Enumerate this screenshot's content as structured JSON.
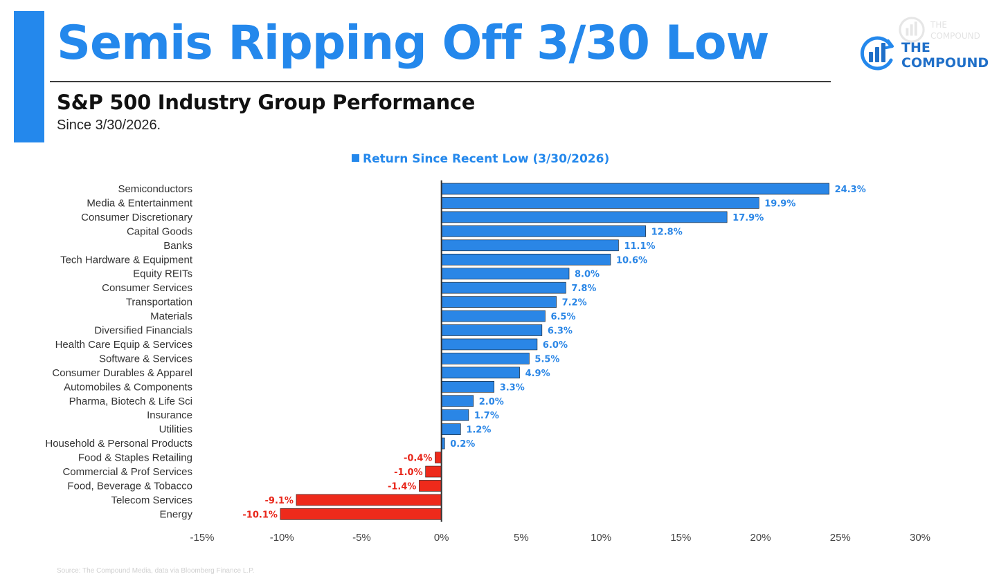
{
  "header": {
    "title": "Semis Ripping Off 3/30 Low",
    "subtitle": "S&P 500 Industry Group Performance",
    "subtitle_2": "Since 3/30/2026.",
    "logo_line_1": "THE",
    "logo_line_2": "COMPOUND",
    "watermark_line_1": "THE",
    "watermark_line_2": "COMPOUND"
  },
  "footer": {
    "source": "Source: The Compound Media, data via Bloomberg Finance L.P."
  },
  "colors": {
    "accent": "#2488ec",
    "positive": "#2a86e6",
    "negative": "#ee2a1b",
    "positive_label": "#2a86e6",
    "negative_label": "#e8261a"
  },
  "chart_data": {
    "type": "bar",
    "orientation": "horizontal",
    "title": "",
    "legend": "Return Since Recent Low (3/30/2026)",
    "legend_position": "top",
    "categories": [
      "Semiconductors",
      "Media & Entertainment",
      "Consumer Discretionary",
      "Capital Goods",
      "Banks",
      "Tech Hardware & Equipment",
      "Equity REITs",
      "Consumer Services",
      "Transportation",
      "Materials",
      "Diversified Financials",
      "Health Care Equip & Services",
      "Software & Services",
      "Consumer Durables & Apparel",
      "Automobiles & Components",
      "Pharma, Biotech & Life Sci",
      "Insurance",
      "Utilities",
      "Household & Personal Products",
      "Food & Staples Retailing",
      "Commercial & Prof Services",
      "Food, Beverage & Tobacco",
      "Telecom Services",
      "Energy"
    ],
    "series": [
      {
        "name": "Return Since Recent Low (3/30/2026)",
        "values": [
          24.3,
          19.9,
          17.9,
          12.8,
          11.1,
          10.6,
          8.0,
          7.8,
          7.2,
          6.5,
          6.3,
          6.0,
          5.5,
          4.9,
          3.3,
          2.0,
          1.7,
          1.2,
          0.2,
          -0.4,
          -1.0,
          -1.4,
          -9.1,
          -10.1
        ],
        "labels": [
          "24.3%",
          "19.9%",
          "17.9%",
          "12.8%",
          "11.1%",
          "10.6%",
          "8.0%",
          "7.8%",
          "7.2%",
          "6.5%",
          "6.3%",
          "6.0%",
          "5.5%",
          "4.9%",
          "3.3%",
          "2.0%",
          "1.7%",
          "1.2%",
          "0.2%",
          "-0.4%",
          "-1.0%",
          "-1.4%",
          "-9.1%",
          "-10.1%"
        ]
      }
    ],
    "xlim": [
      -15,
      30
    ],
    "x_ticks": [
      -15,
      -10,
      -5,
      0,
      5,
      10,
      15,
      20,
      25,
      30
    ],
    "x_tick_labels": [
      "-15%",
      "-10%",
      "-5%",
      "0%",
      "5%",
      "10%",
      "15%",
      "20%",
      "25%",
      "30%"
    ],
    "xlabel": "",
    "ylabel": "",
    "grid": false
  }
}
